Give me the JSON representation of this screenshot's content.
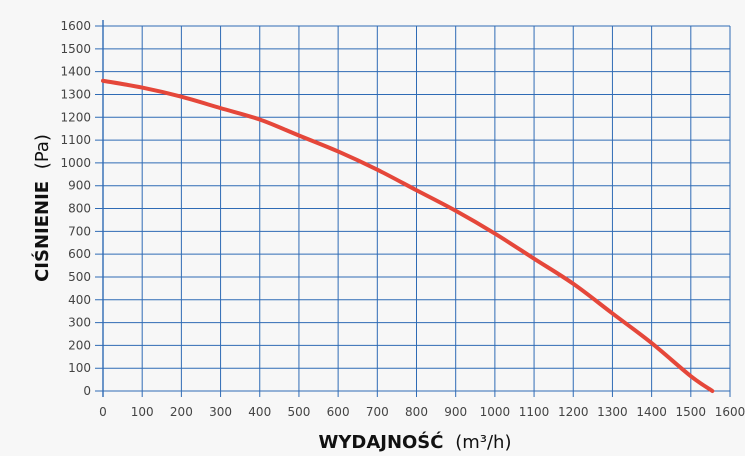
{
  "chart_data": {
    "type": "line",
    "xlabel": "WYDAJNOŚĆ",
    "xunit": "(m³/h)",
    "ylabel": "CIŚNIENIE",
    "yunit": "(Pa)",
    "xlim": [
      0,
      1600
    ],
    "ylim": [
      0,
      1600
    ],
    "x_ticks": [
      0,
      100,
      200,
      300,
      400,
      500,
      600,
      700,
      800,
      900,
      1000,
      1100,
      1200,
      1300,
      1400,
      1500,
      1600
    ],
    "y_ticks": [
      0,
      100,
      200,
      300,
      400,
      500,
      600,
      700,
      800,
      900,
      1000,
      1100,
      1200,
      1300,
      1400,
      1500,
      1600
    ],
    "grid": true,
    "series": [
      {
        "x": [
          0,
          100,
          200,
          300,
          400,
          500,
          600,
          700,
          800,
          900,
          1000,
          1100,
          1200,
          1300,
          1400,
          1500,
          1555
        ],
        "y": [
          1360,
          1330,
          1290,
          1240,
          1190,
          1120,
          1050,
          970,
          880,
          790,
          690,
          580,
          470,
          340,
          210,
          65,
          0
        ]
      }
    ],
    "colors": {
      "line": "#e5473a",
      "grid": "#2f6bb5",
      "background": "#f7f7f7"
    }
  }
}
